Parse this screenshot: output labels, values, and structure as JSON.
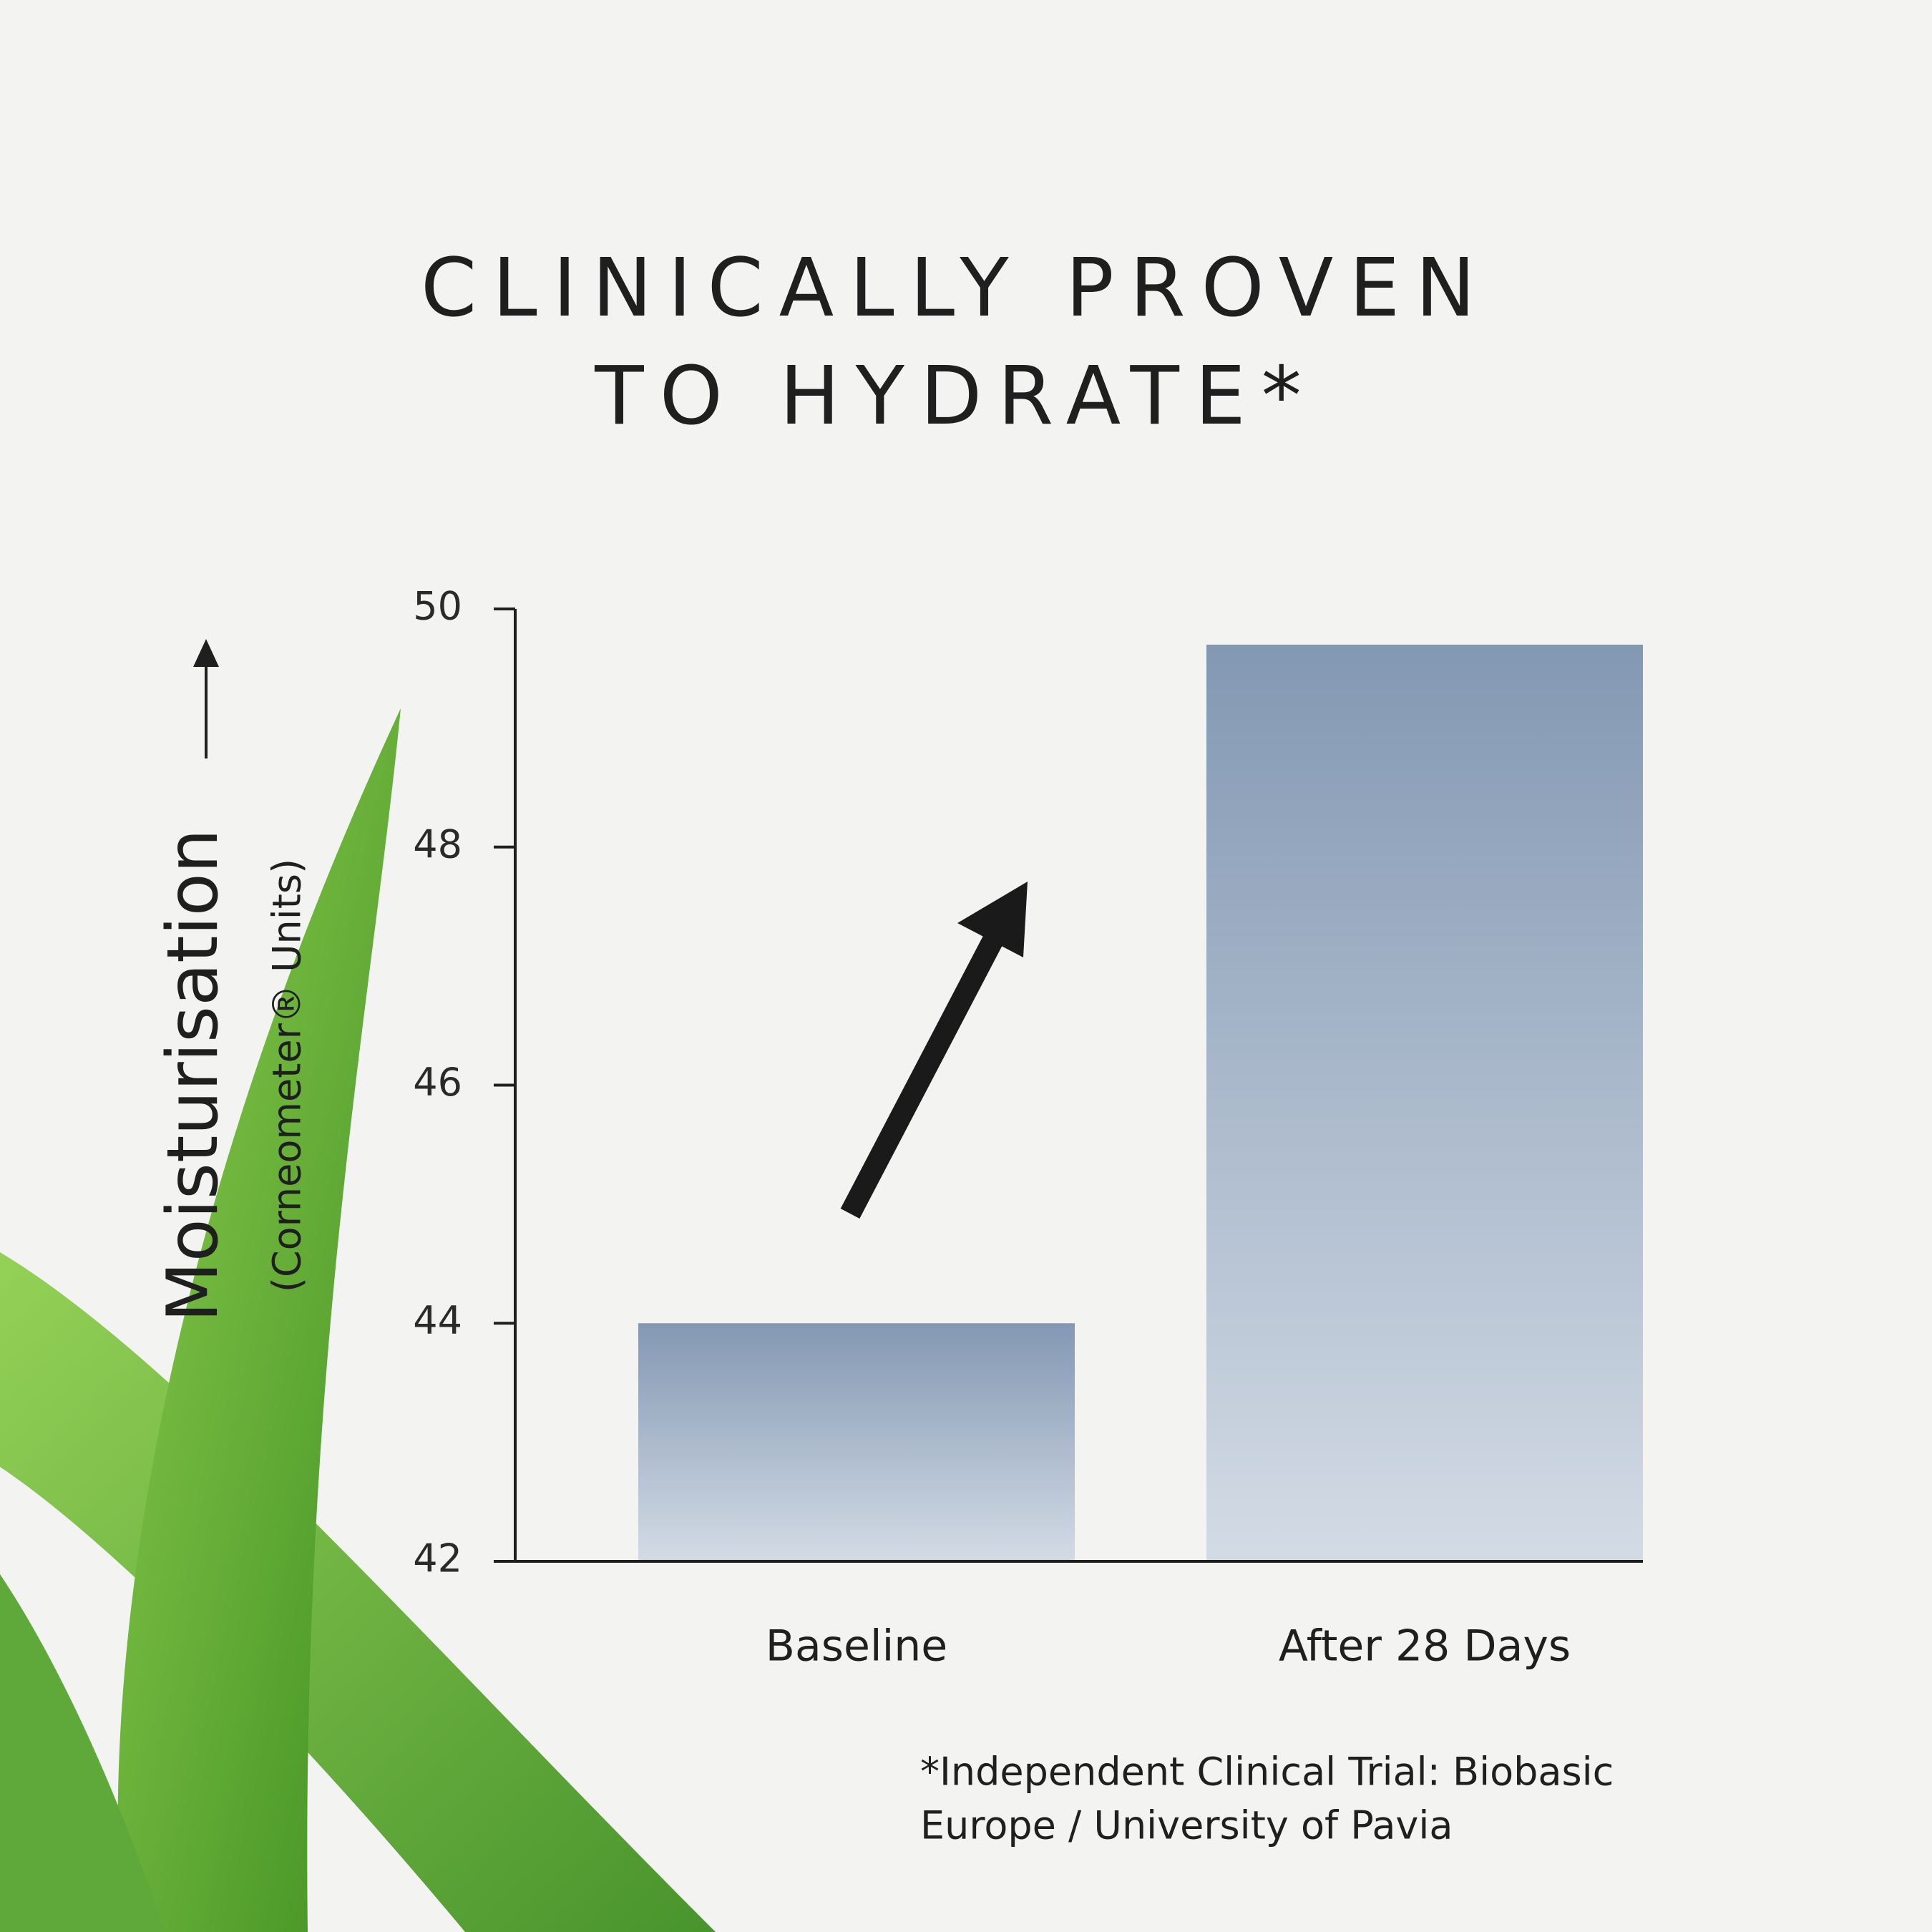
{
  "chart_data": {
    "type": "bar",
    "title": [
      "CLINICALLY PROVEN",
      "TO HYDRATE*"
    ],
    "y_label": "Moisturisation",
    "y_sublabel": "(Corneometer® Units)",
    "categories": [
      "Baseline",
      "After 28 Days"
    ],
    "values": [
      44,
      49.7
    ],
    "color": "#8398b3",
    "ylim": [
      42,
      50
    ],
    "yticks": [
      42,
      44,
      46,
      48,
      50
    ],
    "footnote": [
      "*Independent Clinical Trial: Biobasic",
      "Europe / University of Pavia"
    ]
  }
}
